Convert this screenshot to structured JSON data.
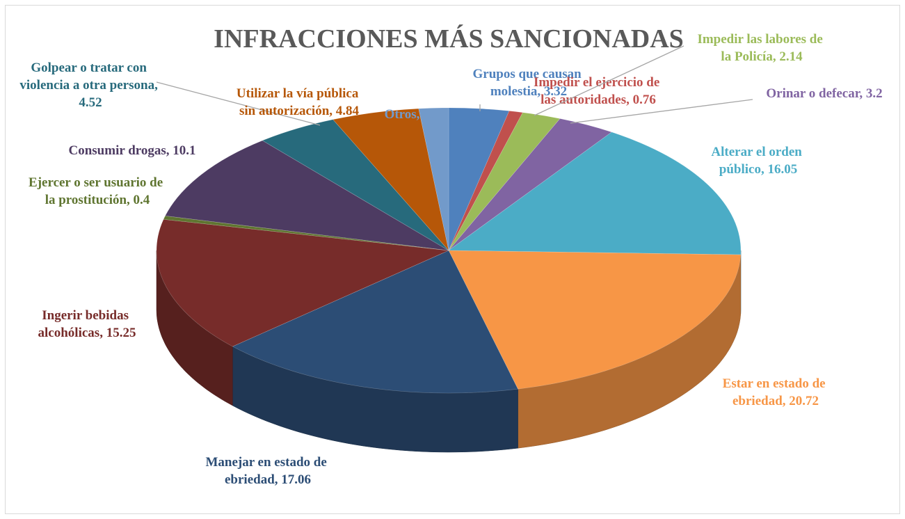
{
  "chart_data": {
    "type": "pie",
    "title": "INFRACCIONES MÁS SANCIONADAS",
    "values": [
      3.32,
      0.76,
      2.14,
      3.2,
      16.05,
      20.72,
      17.06,
      15.25,
      0.4,
      10.1,
      4.52,
      4.84,
      1.64
    ],
    "value_labels": [
      "Grupos que causan molestia, 3.32",
      "Impedir el ejercicio de las autoridades, 0.76",
      "Impedir las labores de la Policía, 2.14",
      "Orinar o defecar, 3.2",
      "Alterar el orden público, 16.05",
      "Estar en estado de ebriedad, 20.72",
      "Manejar en estado de ebriedad, 17.06",
      "Ingerir bebidas alcohólicas, 15.25",
      "Ejercer o ser usuario de la prostitución, 0.4",
      "Consumir drogas, 10.1",
      "Golpear o tratar con violencia a otra persona, 4.52",
      "Utilizar la vía pública sin autorización, 4.84",
      "Otros, 1.64"
    ],
    "colors": [
      "#4f81bd",
      "#c0504d",
      "#9bbb59",
      "#8064a2",
      "#4bacc6",
      "#f79646",
      "#2c4d75",
      "#772c2a",
      "#5f7530",
      "#4d3b62",
      "#276a7c",
      "#b65708",
      "#729aca"
    ]
  }
}
